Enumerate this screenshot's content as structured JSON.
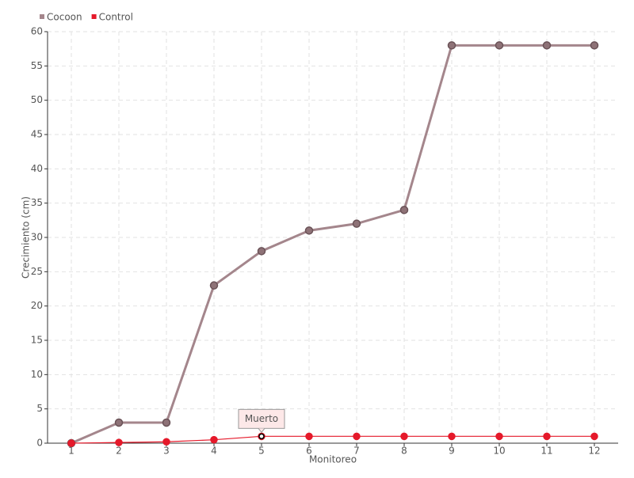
{
  "chart_data": {
    "type": "line",
    "x_label": "Monitoreo",
    "y_label": "Crecimiento (cm)",
    "categories": [
      "1",
      "2",
      "3",
      "4",
      "5",
      "6",
      "7",
      "8",
      "9",
      "10",
      "11",
      "12"
    ],
    "series": [
      {
        "name": "Cocoon",
        "color": "#a4868c",
        "values": [
          0,
          3,
          3,
          23,
          28,
          31,
          32,
          34,
          58,
          58,
          58,
          58
        ]
      },
      {
        "name": "Control",
        "color": "#e5192a",
        "values": [
          0,
          0.1,
          0.2,
          0.5,
          1,
          1,
          1,
          1,
          1,
          1,
          1,
          1
        ]
      }
    ],
    "annotation": "Muerto",
    "ylim": [
      0,
      60
    ],
    "yticks": [
      0,
      5,
      10,
      15,
      20,
      25,
      30,
      35,
      40,
      45,
      50,
      55,
      60
    ],
    "grid": true,
    "legend": "top-left"
  }
}
